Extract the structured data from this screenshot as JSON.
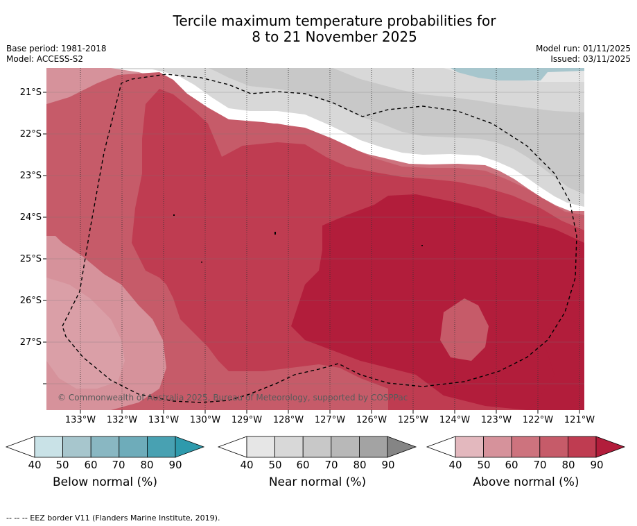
{
  "title": {
    "line1": "Tercile maximum temperature probabilities for",
    "line2": "8 to 21 November 2025"
  },
  "meta": {
    "base_period": "Base period: 1981-2018",
    "model": "Model: ACCESS-S2",
    "model_run": "Model run: 01/11/2025",
    "issued": "Issued: 03/11/2025"
  },
  "map": {
    "lat_labels": [
      "21°S",
      "22°S",
      "23°S",
      "24°S",
      "25°S",
      "26°S",
      "27°S"
    ],
    "lon_labels": [
      "133°W",
      "132°W",
      "131°W",
      "130°W",
      "129°W",
      "128°W",
      "127°W",
      "126°W",
      "125°W",
      "124°W",
      "123°W",
      "122°W",
      "121°W"
    ],
    "credit": "© Commonwealth of Australia 2025, Bureau of Meteorology, supported by COSPPac",
    "colors": {
      "above_40": "#e3b8be",
      "above_50": "#d6929b",
      "above_60": "#cd737e",
      "above_70": "#c65b69",
      "above_80": "#bf3c51",
      "above_90": "#b21d3b",
      "near_40": "#e6e6e6",
      "near_50": "#d8d8d8",
      "near_60": "#c8c8c8",
      "near_70": "#b8b8b8",
      "near_80": "#a3a3a3",
      "near_90": "#858585",
      "below_40": "#c9e2e7",
      "below_50": "#a7c6cd",
      "below_60": "#89b7c2",
      "below_70": "#6eacba",
      "below_80": "#48a1b2",
      "below_90": "#2e9aac"
    }
  },
  "legend": {
    "tick_labels": [
      "40",
      "50",
      "60",
      "70",
      "80",
      "90"
    ],
    "below": {
      "title": "Below normal (%)",
      "colors": [
        "#c9e2e7",
        "#a7c6cd",
        "#89b7c2",
        "#6eacba",
        "#48a1b2"
      ],
      "extend": "#2e9aac"
    },
    "near": {
      "title": "Near normal (%)",
      "colors": [
        "#e6e6e6",
        "#d8d8d8",
        "#c8c8c8",
        "#b8b8b8",
        "#a3a3a3"
      ],
      "extend": "#858585"
    },
    "above": {
      "title": "Above normal (%)",
      "colors": [
        "#e3b8be",
        "#d6929b",
        "#cd737e",
        "#c65b69",
        "#bf3c51"
      ],
      "extend": "#b21d3b"
    }
  },
  "footnote": "-- -- -- EEZ border V11 (Flanders Marine Institute, 2019)."
}
